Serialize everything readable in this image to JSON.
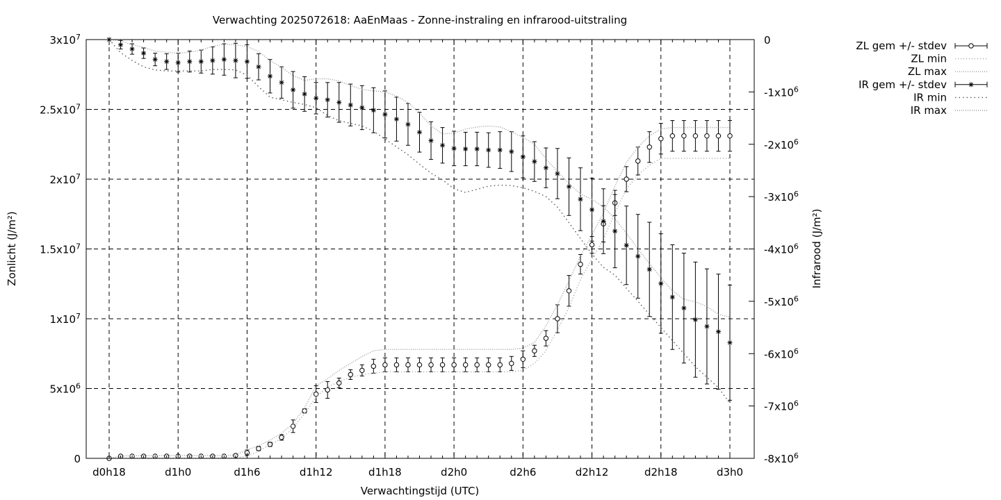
{
  "chart_data": {
    "type": "line",
    "title": "Verwachting 2025072618: AaEnMaas - Zonne-instraling en infrarood-uitstraling",
    "xlabel": "Verwachtingstijd (UTC)",
    "ylabel_left": "Zonlicht (J/m²)",
    "ylabel_right": "Infrarood (J/m²)",
    "x_unit": "hours since forecast start (0 = d0h18)",
    "x_ticks": [
      {
        "x": 0,
        "label": "d0h18"
      },
      {
        "x": 6,
        "label": "d1h0"
      },
      {
        "x": 12,
        "label": "d1h6"
      },
      {
        "x": 18,
        "label": "d1h12"
      },
      {
        "x": 24,
        "label": "d1h18"
      },
      {
        "x": 30,
        "label": "d2h0"
      },
      {
        "x": 36,
        "label": "d2h6"
      },
      {
        "x": 42,
        "label": "d2h12"
      },
      {
        "x": 48,
        "label": "d2h18"
      },
      {
        "x": 54,
        "label": "d3h0"
      }
    ],
    "xlim": [
      -2,
      56
    ],
    "y_left": {
      "lim": [
        0,
        30000000
      ],
      "ticks": [
        {
          "v": 0,
          "base": "0",
          "exp": ""
        },
        {
          "v": 5000000,
          "base": "5x10",
          "exp": "6"
        },
        {
          "v": 10000000,
          "base": "1x10",
          "exp": "7"
        },
        {
          "v": 15000000,
          "base": "1.5x10",
          "exp": "7"
        },
        {
          "v": 20000000,
          "base": "2x10",
          "exp": "7"
        },
        {
          "v": 25000000,
          "base": "2.5x10",
          "exp": "7"
        },
        {
          "v": 30000000,
          "base": "3x10",
          "exp": "7"
        }
      ]
    },
    "y_right": {
      "lim": [
        -8000000,
        0
      ],
      "ticks": [
        {
          "v": 0,
          "base": "0",
          "exp": ""
        },
        {
          "v": -1000000,
          "base": "-1x10",
          "exp": "6"
        },
        {
          "v": -2000000,
          "base": "-2x10",
          "exp": "6"
        },
        {
          "v": -3000000,
          "base": "-3x10",
          "exp": "6"
        },
        {
          "v": -4000000,
          "base": "-4x10",
          "exp": "6"
        },
        {
          "v": -5000000,
          "base": "-5x10",
          "exp": "6"
        },
        {
          "v": -6000000,
          "base": "-6x10",
          "exp": "6"
        },
        {
          "v": -7000000,
          "base": "-7x10",
          "exp": "6"
        },
        {
          "v": -8000000,
          "base": "-8x10",
          "exp": "6"
        }
      ]
    },
    "grid": true,
    "legend_position": "outside-top-right",
    "legend": [
      {
        "label": "ZL gem +/- stdev",
        "kind": "errbar",
        "marker": "circle"
      },
      {
        "label": "ZL min",
        "kind": "line",
        "dash": "dotted"
      },
      {
        "label": "ZL max",
        "kind": "line",
        "dash": "dotted"
      },
      {
        "label": "IR gem +/- stdev",
        "kind": "errbar",
        "marker": "star"
      },
      {
        "label": "IR min",
        "kind": "line",
        "dash": "dotted"
      },
      {
        "label": "IR max",
        "kind": "line",
        "dash": "dotted"
      }
    ],
    "x": [
      0,
      1,
      2,
      3,
      4,
      5,
      6,
      7,
      8,
      9,
      10,
      11,
      12,
      13,
      14,
      15,
      16,
      17,
      18,
      19,
      20,
      21,
      22,
      23,
      24,
      25,
      26,
      27,
      28,
      29,
      30,
      31,
      32,
      33,
      34,
      35,
      36,
      37,
      38,
      39,
      40,
      41,
      42,
      43,
      44,
      45,
      46,
      47,
      48,
      49,
      50,
      51,
      52,
      53,
      54
    ],
    "series": [
      {
        "name": "ZL gem +/- stdev",
        "axis": "left",
        "mean": [
          0,
          150000,
          150000,
          150000,
          150000,
          150000,
          150000,
          150000,
          150000,
          150000,
          150000,
          200000,
          400000,
          700000,
          1000000,
          1500000,
          2300000,
          3400000,
          4600000,
          4900000,
          5400000,
          6000000,
          6300000,
          6600000,
          6700000,
          6700000,
          6700000,
          6700000,
          6700000,
          6700000,
          6700000,
          6700000,
          6700000,
          6700000,
          6700000,
          6800000,
          7100000,
          7700000,
          8600000,
          10000000,
          12000000,
          13900000,
          15300000,
          16800000,
          18300000,
          20000000,
          21300000,
          22300000,
          22900000,
          23100000,
          23100000,
          23100000,
          23100000,
          23100000,
          23100000
        ],
        "stdev": [
          0,
          50000,
          50000,
          50000,
          50000,
          50000,
          50000,
          50000,
          50000,
          50000,
          50000,
          50000,
          200000,
          150000,
          150000,
          200000,
          450000,
          150000,
          600000,
          600000,
          350000,
          350000,
          400000,
          500000,
          500000,
          500000,
          500000,
          500000,
          500000,
          500000,
          500000,
          500000,
          500000,
          500000,
          500000,
          500000,
          600000,
          400000,
          550000,
          1000000,
          1100000,
          700000,
          600000,
          1300000,
          900000,
          900000,
          1000000,
          1100000,
          1100000,
          1100000,
          1100000,
          1100000,
          1100000,
          1100000,
          1100000
        ]
      },
      {
        "name": "ZL min",
        "axis": "left",
        "values": [
          0,
          0,
          0,
          0,
          0,
          0,
          0,
          0,
          0,
          0,
          0,
          50000,
          150000,
          500000,
          1000000,
          1400000,
          2200000,
          3200000,
          4400000,
          5100000,
          5500000,
          5800000,
          6000000,
          6100000,
          6200000,
          6200000,
          6200000,
          6200000,
          6200000,
          6200000,
          6200000,
          6200000,
          6200000,
          6200000,
          6200000,
          6200000,
          6300000,
          6800000,
          7700000,
          9200000,
          10800000,
          12800000,
          14300000,
          15700000,
          17600000,
          19300000,
          20300000,
          21000000,
          21500000,
          21500000,
          21500000,
          21500000,
          21500000,
          21500000,
          21500000
        ]
      },
      {
        "name": "ZL max",
        "axis": "left",
        "values": [
          0,
          150000,
          200000,
          200000,
          200000,
          200000,
          200000,
          200000,
          200000,
          200000,
          200000,
          250000,
          600000,
          900000,
          1300000,
          1800000,
          2500000,
          3600000,
          5200000,
          5700000,
          6300000,
          6800000,
          7300000,
          7700000,
          7800000,
          7800000,
          7800000,
          7800000,
          7800000,
          7800000,
          7800000,
          7800000,
          7800000,
          7800000,
          7800000,
          7800000,
          7900000,
          8300000,
          9500000,
          11000000,
          12700000,
          14500000,
          16000000,
          17600000,
          19500000,
          21200000,
          22300000,
          23100000,
          23600000,
          23700000,
          23700000,
          23700000,
          23700000,
          23700000,
          23700000
        ]
      },
      {
        "name": "IR gem +/- stdev",
        "axis": "right",
        "mean": [
          0,
          -100000,
          -180000,
          -260000,
          -380000,
          -420000,
          -440000,
          -420000,
          -420000,
          -400000,
          -380000,
          -400000,
          -420000,
          -520000,
          -700000,
          -820000,
          -960000,
          -1040000,
          -1120000,
          -1150000,
          -1200000,
          -1250000,
          -1300000,
          -1350000,
          -1430000,
          -1520000,
          -1620000,
          -1770000,
          -1930000,
          -2020000,
          -2080000,
          -2090000,
          -2090000,
          -2110000,
          -2110000,
          -2140000,
          -2240000,
          -2330000,
          -2450000,
          -2560000,
          -2810000,
          -3050000,
          -3250000,
          -3470000,
          -3660000,
          -3930000,
          -4140000,
          -4390000,
          -4660000,
          -4920000,
          -5130000,
          -5350000,
          -5480000,
          -5580000,
          -5790000
        ],
        "stdev": [
          0,
          80000,
          100000,
          100000,
          120000,
          150000,
          180000,
          200000,
          220000,
          260000,
          300000,
          330000,
          320000,
          250000,
          320000,
          300000,
          350000,
          330000,
          300000,
          330000,
          380000,
          400000,
          420000,
          430000,
          450000,
          420000,
          400000,
          380000,
          360000,
          340000,
          330000,
          320000,
          320000,
          330000,
          350000,
          380000,
          400000,
          380000,
          380000,
          480000,
          550000,
          600000,
          600000,
          620000,
          700000,
          750000,
          800000,
          900000,
          950000,
          1000000,
          1050000,
          1100000,
          1100000,
          1100000,
          1100000
        ]
      },
      {
        "name": "IR min",
        "axis": "right",
        "values": [
          0,
          -250000,
          -400000,
          -520000,
          -580000,
          -600000,
          -600000,
          -600000,
          -600000,
          -570000,
          -570000,
          -580000,
          -680000,
          -900000,
          -1100000,
          -1150000,
          -1200000,
          -1240000,
          -1300000,
          -1450000,
          -1550000,
          -1600000,
          -1650000,
          -1750000,
          -1900000,
          -2050000,
          -2200000,
          -2380000,
          -2550000,
          -2680000,
          -2850000,
          -2920000,
          -2860000,
          -2800000,
          -2780000,
          -2790000,
          -2830000,
          -2900000,
          -3000000,
          -3200000,
          -3500000,
          -3800000,
          -4100000,
          -4350000,
          -4500000,
          -4750000,
          -5000000,
          -5250000,
          -5500000,
          -5750000,
          -6000000,
          -6250000,
          -6450000,
          -6650000,
          -6950000
        ]
      },
      {
        "name": "IR max",
        "axis": "right",
        "values": [
          0,
          -20000,
          -100000,
          -150000,
          -220000,
          -240000,
          -260000,
          -240000,
          -200000,
          -130000,
          -90000,
          -100000,
          -130000,
          -230000,
          -400000,
          -530000,
          -690000,
          -780000,
          -750000,
          -750000,
          -790000,
          -880000,
          -950000,
          -980000,
          -1000000,
          -1080000,
          -1200000,
          -1400000,
          -1650000,
          -1800000,
          -1790000,
          -1710000,
          -1670000,
          -1650000,
          -1670000,
          -1760000,
          -1870000,
          -2000000,
          -2280000,
          -2520000,
          -2750000,
          -2950000,
          -3050000,
          -3200000,
          -3420000,
          -3700000,
          -4000000,
          -4280000,
          -4550000,
          -4800000,
          -4960000,
          -5010000,
          -5100000,
          -5250000,
          -5300000
        ]
      }
    ]
  }
}
